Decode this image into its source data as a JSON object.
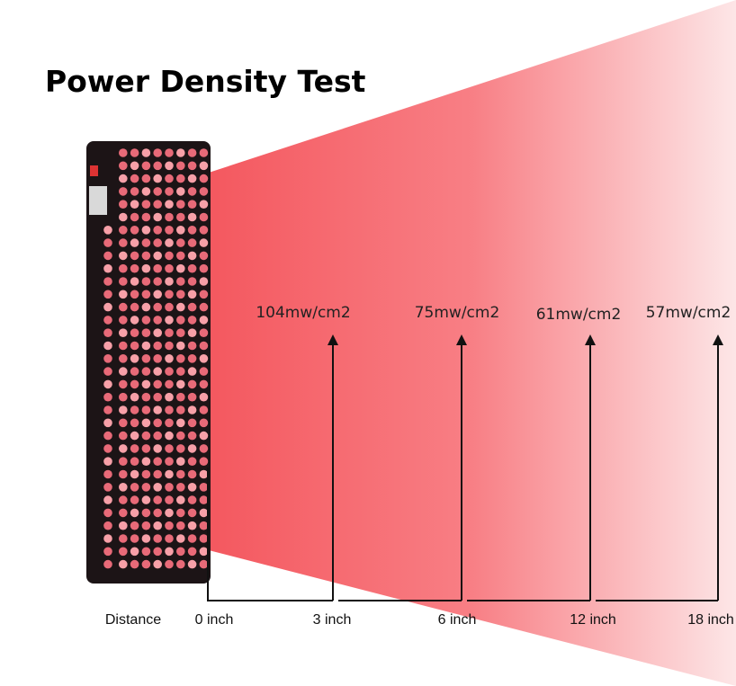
{
  "title": "Power Density Test",
  "distance_label": "Distance",
  "distances": [
    "0 inch",
    "3 inch",
    "6 inch",
    "12 inch",
    "18 inch"
  ],
  "readings": [
    "104mw/cm2",
    "75mw/cm2",
    "61mw/cm2",
    "57mw/cm2"
  ]
}
